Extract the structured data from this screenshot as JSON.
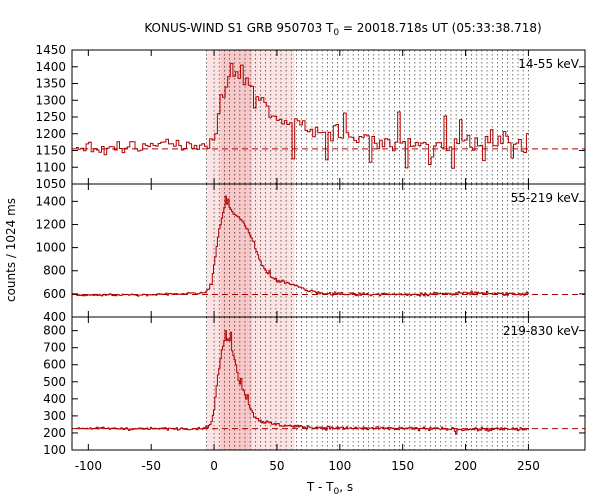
{
  "chart_data": {
    "type": "line",
    "subtype": "step-histogram",
    "title": {
      "prefix": "KONUS-WIND S1 GRB 950703 T",
      "sub": "0",
      "suffix": " = 20018.718s UT (05:33:38.718)"
    },
    "xlabel": {
      "main": "T - T",
      "sub": "0",
      "suffix": ", s"
    },
    "ylabel": "counts / 1024 ms",
    "xlim": [
      -113,
      295
    ],
    "x_ticks": [
      -100,
      -50,
      0,
      50,
      100,
      150,
      200,
      250
    ],
    "x_tick_labels": [
      "-100",
      "-50",
      "0",
      "50",
      "100",
      "150",
      "200",
      "250"
    ],
    "colors": {
      "data": "#b00000",
      "shade_light": "#fde4e4",
      "shade_dark": "#f7bcbc",
      "grid": "#000000",
      "axes": "#000000"
    },
    "shaded_interval": [
      -6,
      64
    ],
    "darker_interval": [
      5,
      30
    ],
    "t90_guide_times": [
      -6,
      0,
      4.1,
      8.2,
      12.3,
      16.4,
      20.5,
      24.6,
      28.7,
      32.8,
      36.9,
      41,
      45.1,
      49.2,
      53.2,
      57.3,
      61.4,
      65.5,
      69.6,
      73.7,
      77.8,
      81.9,
      86,
      90.1,
      94.2,
      98.3,
      102.4,
      106.5,
      110.6,
      114.7,
      118.8,
      122.9,
      127,
      131.1,
      135.2,
      139.3,
      143.4,
      147.5,
      151.6,
      155.6,
      159.7,
      163.8,
      167.9,
      172,
      176.1,
      180.2,
      184.3,
      188.4,
      192.5,
      196.6,
      200.7,
      204.8,
      208.9,
      213,
      217.1,
      221.2,
      225.3,
      229.4,
      233.5,
      237.6,
      241.7,
      245.8,
      250
    ],
    "time_binning_s": 1.024,
    "series": [
      {
        "name": "14-55 keV",
        "ylim": [
          1050,
          1450
        ],
        "y_ticks": [
          1050,
          1100,
          1150,
          1200,
          1250,
          1300,
          1350,
          1400,
          1450
        ],
        "background": 1155,
        "profile": {
          "t_start": -110,
          "t_end": 250,
          "bin": 2.048,
          "pre_noise": 18,
          "post_noise": 28,
          "points": [
            [
              -110,
              1160
            ],
            [
              -85,
              1158
            ],
            [
              -55,
              1162
            ],
            [
              -35,
              1170
            ],
            [
              -20,
              1160
            ],
            [
              -6,
              1155
            ],
            [
              -2,
              1190
            ],
            [
              2,
              1245
            ],
            [
              5,
              1300
            ],
            [
              8,
              1330
            ],
            [
              11,
              1365
            ],
            [
              13,
              1390
            ],
            [
              16,
              1375
            ],
            [
              20,
              1370
            ],
            [
              24,
              1360
            ],
            [
              28,
              1330
            ],
            [
              34,
              1295
            ],
            [
              40,
              1265
            ],
            [
              50,
              1245
            ],
            [
              60,
              1230
            ],
            [
              80,
              1210
            ],
            [
              120,
              1185
            ],
            [
              160,
              1170
            ],
            [
              200,
              1172
            ],
            [
              250,
              1175
            ]
          ],
          "spikes": [
            [
              -30,
              1180
            ],
            [
              -22,
              1175
            ],
            [
              1,
              1200
            ],
            [
              3,
              1260
            ],
            [
              12,
              1410
            ],
            [
              18,
              1385
            ],
            [
              22,
              1405
            ],
            [
              27,
              1345
            ],
            [
              36,
              1300
            ],
            [
              64,
              1245
            ],
            [
              72,
              1210
            ],
            [
              102,
              1262
            ],
            [
              146,
              1265
            ],
            [
              183,
              1253
            ],
            [
              196,
              1242
            ],
            [
              220,
              1212
            ],
            [
              62,
              1125
            ],
            [
              88,
              1122
            ],
            [
              124,
              1115
            ],
            [
              152,
              1098
            ],
            [
              170,
              1108
            ],
            [
              190,
              1097
            ],
            [
              214,
              1120
            ],
            [
              237,
              1128
            ]
          ]
        }
      },
      {
        "name": "55-219 keV",
        "ylim": [
          400,
          1550
        ],
        "y_ticks": [
          400,
          600,
          800,
          1000,
          1200,
          1400
        ],
        "background": 595,
        "profile": {
          "t_start": -110,
          "t_end": 250,
          "bin": 1.024,
          "pre_noise": 7,
          "post_noise": 12,
          "points": [
            [
              -110,
              590
            ],
            [
              -60,
              592
            ],
            [
              -25,
              600
            ],
            [
              -8,
              610
            ],
            [
              -4,
              640
            ],
            [
              -2,
              700
            ],
            [
              0,
              830
            ],
            [
              2,
              1000
            ],
            [
              4,
              1140
            ],
            [
              6,
              1250
            ],
            [
              8,
              1340
            ],
            [
              10,
              1380
            ],
            [
              12,
              1360
            ],
            [
              14,
              1320
            ],
            [
              18,
              1270
            ],
            [
              22,
              1230
            ],
            [
              26,
              1170
            ],
            [
              30,
              1080
            ],
            [
              34,
              960
            ],
            [
              38,
              850
            ],
            [
              42,
              790
            ],
            [
              46,
              745
            ],
            [
              50,
              715
            ],
            [
              55,
              700
            ],
            [
              62,
              680
            ],
            [
              70,
              650
            ],
            [
              80,
              615
            ],
            [
              100,
              600
            ],
            [
              150,
              595
            ],
            [
              200,
              605
            ],
            [
              250,
              600
            ]
          ],
          "spikes": [
            [
              9,
              1445
            ],
            [
              11,
              1420
            ],
            [
              31,
              1050
            ],
            [
              44,
              805
            ]
          ]
        }
      },
      {
        "name": "219-830 keV",
        "ylim": [
          100,
          880
        ],
        "y_ticks": [
          100,
          200,
          300,
          400,
          500,
          600,
          700,
          800
        ],
        "background": 225,
        "profile": {
          "t_start": -110,
          "t_end": 250,
          "bin": 1.024,
          "pre_noise": 6,
          "post_noise": 9,
          "points": [
            [
              -110,
              228
            ],
            [
              -60,
              224
            ],
            [
              -10,
              226
            ],
            [
              -4,
              240
            ],
            [
              -2,
              270
            ],
            [
              0,
              330
            ],
            [
              2,
              470
            ],
            [
              4,
              580
            ],
            [
              6,
              670
            ],
            [
              8,
              740
            ],
            [
              10,
              730
            ],
            [
              12,
              760
            ],
            [
              14,
              700
            ],
            [
              16,
              640
            ],
            [
              18,
              580
            ],
            [
              20,
              500
            ],
            [
              24,
              440
            ],
            [
              28,
              360
            ],
            [
              32,
              300
            ],
            [
              36,
              275
            ],
            [
              40,
              265
            ],
            [
              45,
              255
            ],
            [
              55,
              245
            ],
            [
              70,
              235
            ],
            [
              100,
              228
            ],
            [
              150,
              226
            ],
            [
              200,
              222
            ],
            [
              250,
              222
            ]
          ],
          "spikes": [
            [
              9,
              800
            ],
            [
              13,
              790
            ],
            [
              5,
              635
            ],
            [
              21,
              520
            ],
            [
              26,
              425
            ],
            [
              192,
              192
            ]
          ]
        }
      }
    ]
  }
}
